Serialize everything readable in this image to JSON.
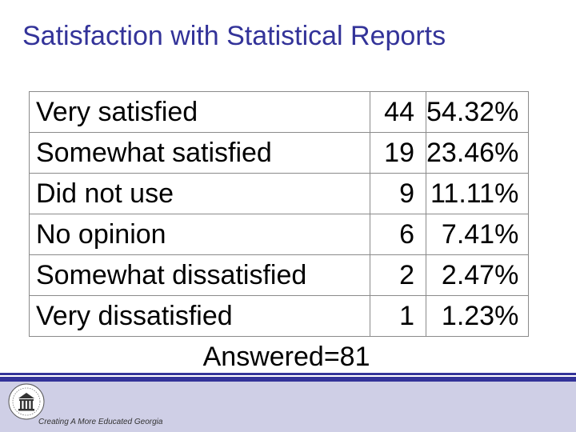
{
  "title": "Satisfaction with Statistical Reports",
  "rows": [
    {
      "label": "Very satisfied",
      "count": "44",
      "percent": "54.32%"
    },
    {
      "label": "Somewhat satisfied",
      "count": "19",
      "percent": "23.46%"
    },
    {
      "label": "Did not use",
      "count": "9",
      "percent": "11.11%"
    },
    {
      "label": "No opinion",
      "count": "6",
      "percent": "7.41%"
    },
    {
      "label": "Somewhat dissatisfied",
      "count": "2",
      "percent": "2.47%"
    },
    {
      "label": "Very dissatisfied",
      "count": "1",
      "percent": "1.23%"
    }
  ],
  "total": "Answered=81",
  "footer": {
    "tagline": "Creating A More Educated Georgia",
    "colors": {
      "title": "#333399",
      "bar": "#333399",
      "band": "#cfcfe6"
    },
    "logo_icon": "seal-icon"
  }
}
